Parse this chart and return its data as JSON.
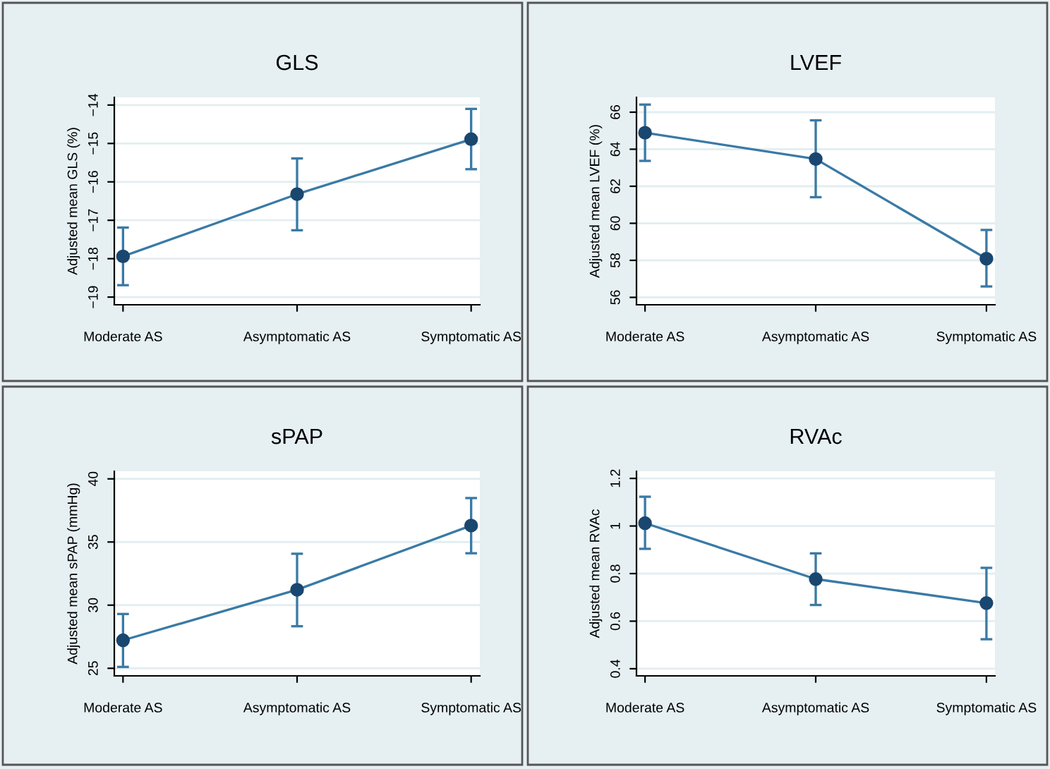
{
  "chart_data": [
    {
      "type": "line",
      "title": "GLS",
      "ylabel": "Adjusted mean GLS (%)",
      "categories": [
        "Moderate AS",
        "Asymptomatic AS",
        "Symptomatic AS"
      ],
      "series": [
        {
          "color": "#1a476f",
          "values": [
            -17.94,
            -16.32,
            -14.89
          ],
          "errors": [
            [
              -18.69,
              -17.19
            ],
            [
              -17.26,
              -15.39
            ],
            [
              -15.67,
              -14.1
            ]
          ]
        }
      ],
      "ylim": [
        -19.2,
        -13.8
      ],
      "yticks": [
        {
          "value": -19,
          "label": "−19"
        },
        {
          "value": -18,
          "label": "−18"
        },
        {
          "value": -17,
          "label": "−17"
        },
        {
          "value": -16,
          "label": "−16"
        },
        {
          "value": -15,
          "label": "−15"
        },
        {
          "value": -14,
          "label": "−14"
        }
      ],
      "grid": "y",
      "marker": "circle",
      "line_style": "solid",
      "legend": false
    },
    {
      "type": "line",
      "title": "LVEF",
      "ylabel": "Adjusted mean LVEF (%)",
      "categories": [
        "Moderate AS",
        "Asymptomatic AS",
        "Symptomatic AS"
      ],
      "series": [
        {
          "color": "#1a476f",
          "values": [
            64.89,
            63.47,
            58.09
          ],
          "errors": [
            [
              63.37,
              66.41
            ],
            [
              61.41,
              65.56
            ],
            [
              56.59,
              59.64
            ]
          ]
        }
      ],
      "ylim": [
        55.6,
        66.8
      ],
      "yticks": [
        56,
        58,
        60,
        62,
        64,
        66
      ],
      "grid": "y",
      "marker": "circle",
      "line_style": "solid",
      "legend": false
    },
    {
      "type": "line",
      "title": "sPAP",
      "ylabel": "Adjusted mean sPAP (mmHg)",
      "categories": [
        "Moderate AS",
        "Asymptomatic AS",
        "Symptomatic AS"
      ],
      "series": [
        {
          "color": "#1a476f",
          "values": [
            27.22,
            31.22,
            36.3
          ],
          "errors": [
            [
              25.11,
              29.3
            ],
            [
              28.33,
              34.07
            ],
            [
              34.11,
              38.48
            ]
          ]
        }
      ],
      "ylim": [
        24.4,
        40.6
      ],
      "yticks": [
        25,
        30,
        35,
        40
      ],
      "grid": "y",
      "marker": "circle",
      "line_style": "solid",
      "legend": false
    },
    {
      "type": "line",
      "title": "RVAc",
      "ylabel": "Adjusted mean RVAc",
      "categories": [
        "Moderate AS",
        "Asymptomatic AS",
        "Symptomatic AS"
      ],
      "series": [
        {
          "color": "#1a476f",
          "values": [
            1.012,
            0.777,
            0.676
          ],
          "errors": [
            [
              0.904,
              1.123
            ],
            [
              0.668,
              0.885
            ],
            [
              0.524,
              0.824
            ]
          ]
        }
      ],
      "ylim": [
        0.37,
        1.23
      ],
      "yticks": [
        0.4,
        0.6,
        0.8,
        1,
        1.2
      ],
      "grid": "y",
      "marker": "circle",
      "line_style": "solid",
      "legend": false
    }
  ]
}
